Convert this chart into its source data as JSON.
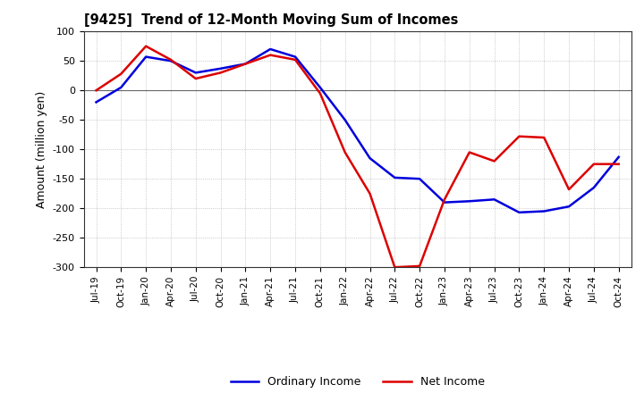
{
  "title": "[9425]  Trend of 12-Month Moving Sum of Incomes",
  "ylabel": "Amount (million yen)",
  "ylim": [
    -300,
    100
  ],
  "yticks": [
    -300,
    -250,
    -200,
    -150,
    -100,
    -50,
    0,
    50,
    100
  ],
  "background_color": "#ffffff",
  "plot_bg_color": "#ffffff",
  "grid_color": "#aaaaaa",
  "ordinary_income_color": "#0000dd",
  "net_income_color": "#dd0000",
  "line_width": 1.8,
  "x_labels": [
    "Jul-19",
    "Oct-19",
    "Jan-20",
    "Apr-20",
    "Jul-20",
    "Oct-20",
    "Jan-21",
    "Apr-21",
    "Jul-21",
    "Oct-21",
    "Jan-22",
    "Apr-22",
    "Jul-22",
    "Oct-22",
    "Jan-23",
    "Apr-23",
    "Jul-23",
    "Oct-23",
    "Jan-24",
    "Apr-24",
    "Jul-24",
    "Oct-24"
  ],
  "ordinary_income": [
    -20,
    5,
    57,
    50,
    30,
    37,
    45,
    70,
    57,
    5,
    -50,
    -115,
    -148,
    -150,
    -190,
    -188,
    -185,
    -207,
    -205,
    -197,
    -165,
    -113
  ],
  "net_income": [
    0,
    28,
    75,
    52,
    20,
    30,
    45,
    60,
    52,
    -5,
    -105,
    -175,
    -300,
    -298,
    -185,
    -105,
    -120,
    -78,
    -80,
    -168,
    -125,
    -125
  ]
}
